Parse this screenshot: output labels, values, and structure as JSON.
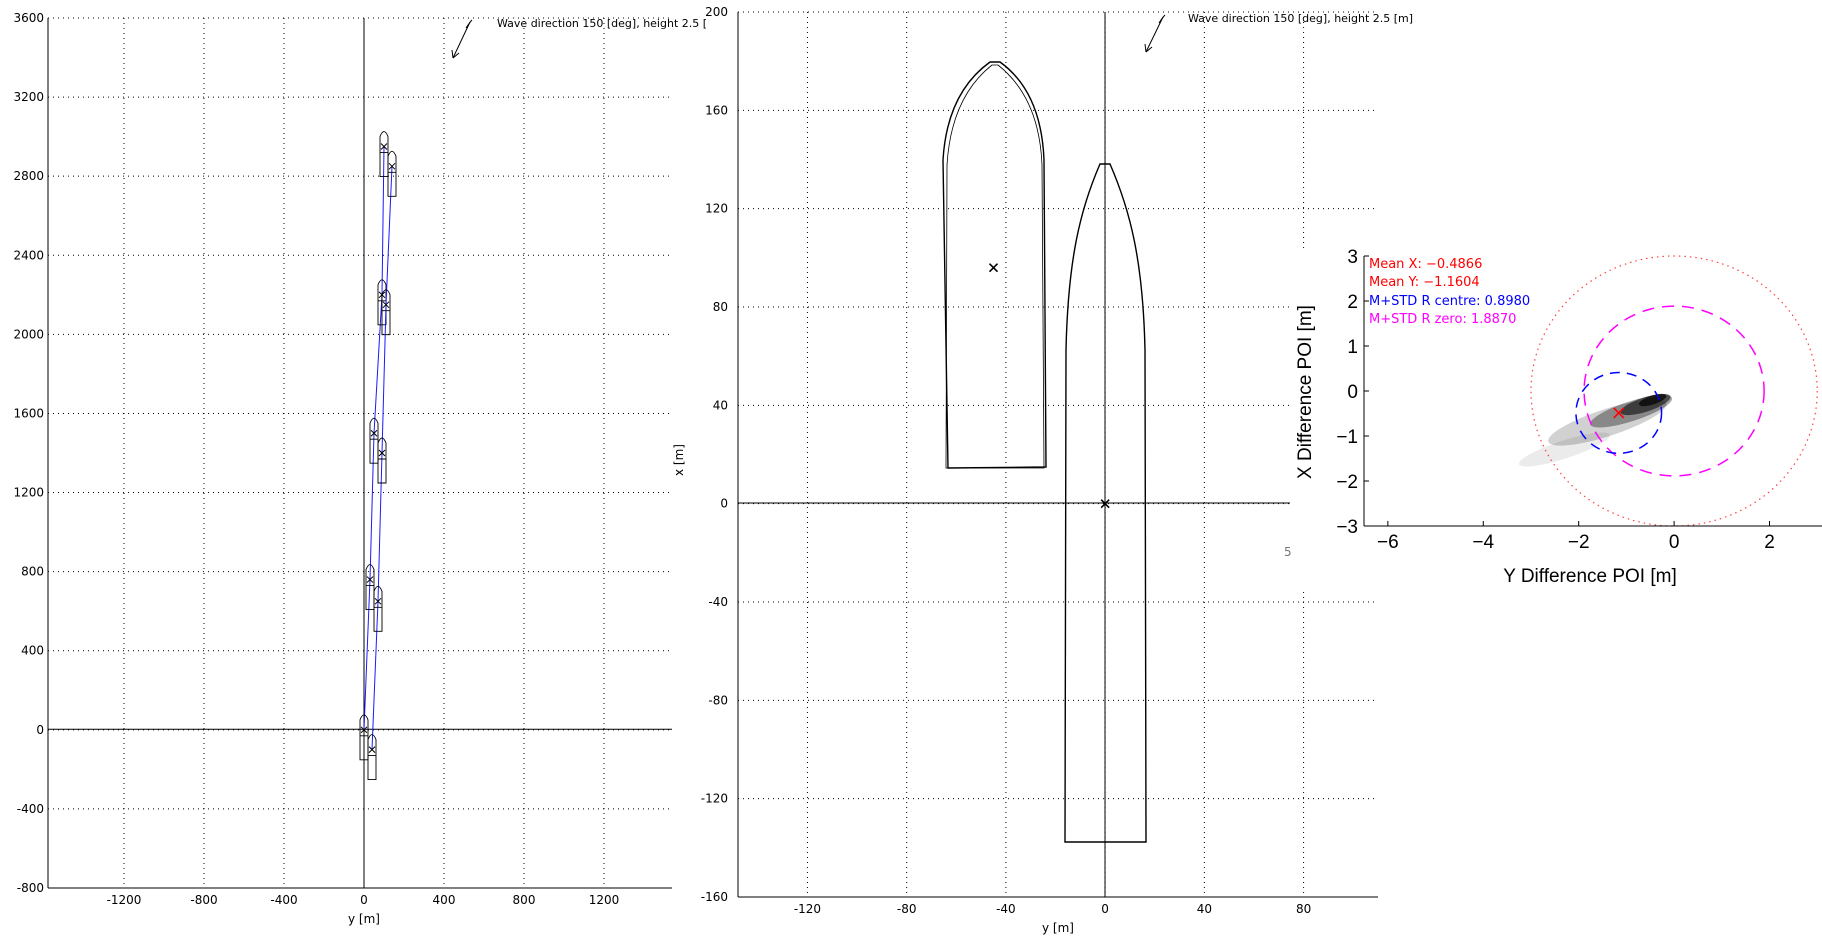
{
  "chart_data": [
    {
      "type": "line",
      "xlabel": "y [m]",
      "ylabel": "",
      "xlim": [
        -1580,
        1540
      ],
      "ylim": [
        -800,
        3600
      ],
      "xticks": [
        -1200,
        -800,
        -400,
        0,
        400,
        800,
        1200
      ],
      "yticks": [
        -800,
        -400,
        0,
        400,
        800,
        1200,
        1600,
        2000,
        2400,
        2800,
        3200,
        3600
      ],
      "grid": true,
      "annotation": "Wave direction 150 [deg], height 2.5 [",
      "series": [
        {
          "x": [
            0,
            30,
            50,
            90,
            100
          ],
          "y": [
            0,
            760,
            1500,
            2200,
            2950
          ]
        },
        {
          "x": [
            40,
            70,
            90,
            110,
            140
          ],
          "y": [
            -100,
            650,
            1400,
            2150,
            2850
          ]
        }
      ]
    },
    {
      "type": "line",
      "xlabel": "y [m]",
      "ylabel": "x [m]",
      "xlim": [
        -148,
        110
      ],
      "ylim": [
        -160,
        200
      ],
      "xticks": [
        -120,
        -80,
        -40,
        0,
        40,
        80
      ],
      "yticks": [
        -160,
        -120,
        -80,
        -40,
        0,
        40,
        80,
        120,
        160,
        200
      ],
      "grid": true,
      "annotation": "Wave direction 150 [deg], height 2.5 [m]",
      "markers": [
        {
          "label": "x",
          "x": -45,
          "y": 96
        },
        {
          "label": "x",
          "x": 0,
          "y": 0
        }
      ]
    },
    {
      "type": "scatter",
      "xlabel": "Y Difference POI [m]",
      "ylabel": "X Difference POI [m]",
      "xlim": [
        -6.5,
        3.1
      ],
      "ylim": [
        -3,
        3
      ],
      "xticks": [
        -6,
        -4,
        -2,
        0,
        2
      ],
      "yticks": [
        -3,
        -2,
        -1,
        0,
        1,
        2,
        3
      ],
      "legend": [
        {
          "text": "Mean X: −0.4866",
          "color": "#ff0000"
        },
        {
          "text": "Mean Y: −1.1604",
          "color": "#ff0000"
        },
        {
          "text": "M+STD R centre: 0.8980",
          "color": "#0000ff"
        },
        {
          "text": "M+STD R zero: 1.8870",
          "color": "#ff00ff"
        }
      ],
      "mean_x": -0.4866,
      "mean_y": -1.1604,
      "r_centre": 0.898,
      "r_zero": 1.887,
      "r_outer": 3
    }
  ],
  "stray_label": "5"
}
